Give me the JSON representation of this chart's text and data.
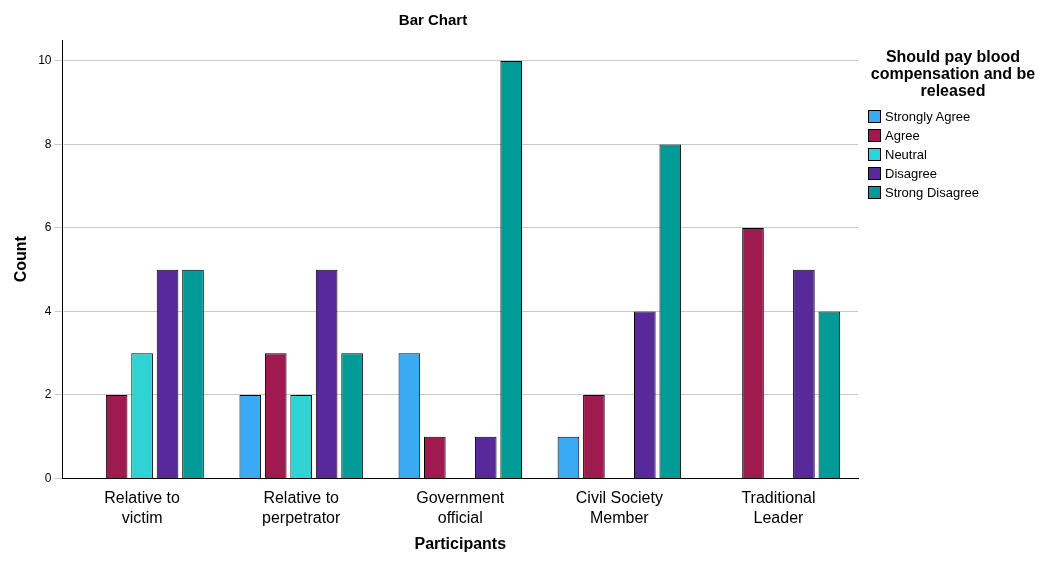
{
  "chart_data": {
    "type": "bar",
    "title": "Bar Chart",
    "xlabel": "Participants",
    "ylabel": "Count",
    "legend_title": "Should pay blood compensation and be released",
    "categories": [
      "Relative to victim",
      "Relative to perpetrator",
      "Government official",
      "Civil Society Member",
      "Traditional Leader"
    ],
    "series": [
      {
        "name": "Strongly Agree",
        "color": "#3aaaf5",
        "values": [
          null,
          2,
          3,
          1,
          null
        ]
      },
      {
        "name": "Agree",
        "color": "#9e1a4f",
        "values": [
          2,
          3,
          1,
          2,
          6
        ]
      },
      {
        "name": "Neutral",
        "color": "#2fd3d3",
        "values": [
          3,
          2,
          null,
          null,
          null
        ]
      },
      {
        "name": "Disagree",
        "color": "#58299a",
        "values": [
          5,
          5,
          1,
          4,
          5
        ]
      },
      {
        "name": "Strong Disagree",
        "color": "#009b96",
        "values": [
          5,
          3,
          10,
          8,
          4
        ]
      }
    ],
    "ylim": [
      0,
      10.5
    ],
    "yticks": [
      0,
      2,
      4,
      6,
      8,
      10
    ],
    "grid": "y",
    "legend": "right"
  }
}
